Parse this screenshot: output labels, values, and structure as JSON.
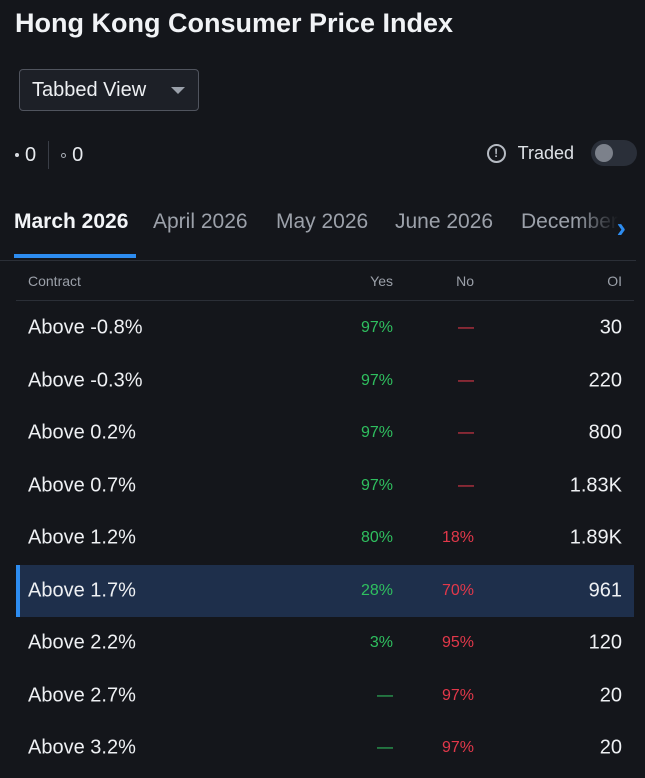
{
  "page": {
    "title": "Hong Kong Consumer Price Index"
  },
  "view_select": {
    "value": "Tabbed View"
  },
  "counts": {
    "filled": "0",
    "hollow": "0"
  },
  "traded": {
    "label": "Traded",
    "toggle_on": false
  },
  "tabs": [
    {
      "label": "March 2026",
      "active": true
    },
    {
      "label": "April 2026",
      "active": false
    },
    {
      "label": "May 2026",
      "active": false
    },
    {
      "label": "June 2026",
      "active": false
    },
    {
      "label": "December",
      "active": false
    }
  ],
  "table": {
    "headers": {
      "contract": "Contract",
      "yes": "Yes",
      "no": "No",
      "oi": "OI"
    },
    "rows": [
      {
        "contract": "Above -0.8%",
        "yes": "97%",
        "no": "—",
        "oi": "30",
        "selected": false
      },
      {
        "contract": "Above -0.3%",
        "yes": "97%",
        "no": "—",
        "oi": "220",
        "selected": false
      },
      {
        "contract": "Above 0.2%",
        "yes": "97%",
        "no": "—",
        "oi": "800",
        "selected": false
      },
      {
        "contract": "Above 0.7%",
        "yes": "97%",
        "no": "—",
        "oi": "1.83K",
        "selected": false
      },
      {
        "contract": "Above 1.2%",
        "yes": "80%",
        "no": "18%",
        "oi": "1.89K",
        "selected": false
      },
      {
        "contract": "Above 1.7%",
        "yes": "28%",
        "no": "70%",
        "oi": "961",
        "selected": true
      },
      {
        "contract": "Above 2.2%",
        "yes": "3%",
        "no": "95%",
        "oi": "120",
        "selected": false
      },
      {
        "contract": "Above 2.7%",
        "yes": "—",
        "no": "97%",
        "oi": "20",
        "selected": false
      },
      {
        "contract": "Above 3.2%",
        "yes": "—",
        "no": "97%",
        "oi": "20",
        "selected": false
      }
    ]
  },
  "colors": {
    "background": "#14161b",
    "accent": "#2d8cf0",
    "yes": "#2fbf5f",
    "no": "#e2384a",
    "selected_row": "#1e2f4b"
  },
  "icons": {
    "info": "info-circle-icon",
    "tab_next": "chevron-right-icon",
    "dropdown": "caret-down-icon"
  }
}
